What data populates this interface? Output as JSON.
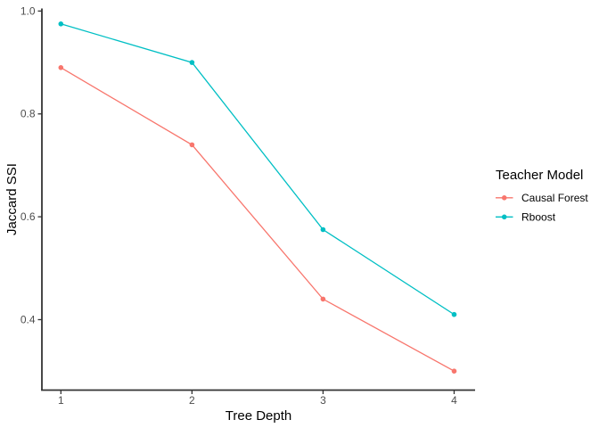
{
  "chart_data": {
    "type": "line",
    "xlabel": "Tree Depth",
    "ylabel": "Jaccard SSI",
    "x": [
      1,
      2,
      3,
      4
    ],
    "x_tick_labels": [
      "1",
      "2",
      "3",
      "4"
    ],
    "y_ticks": [
      0.4,
      0.6,
      0.8,
      1.0
    ],
    "y_tick_labels": [
      "0.4",
      "0.6",
      "0.8",
      "1.0"
    ],
    "xlim": [
      0.855,
      4.16
    ],
    "ylim": [
      0.263,
      1.005
    ],
    "grid": false,
    "marker": "circle",
    "legend": {
      "title": "Teacher Model",
      "position": "right"
    },
    "series": [
      {
        "name": "Causal Forest",
        "color": "#F8766D",
        "values": [
          0.89,
          0.74,
          0.44,
          0.3
        ]
      },
      {
        "name": "Rboost",
        "color": "#00BFC4",
        "values": [
          0.975,
          0.9,
          0.575,
          0.41
        ]
      }
    ],
    "style": {
      "axis_color": "#333333",
      "tick_label_color": "#4D4D4D",
      "text_color": "#000000",
      "background": "#FFFFFF"
    }
  }
}
